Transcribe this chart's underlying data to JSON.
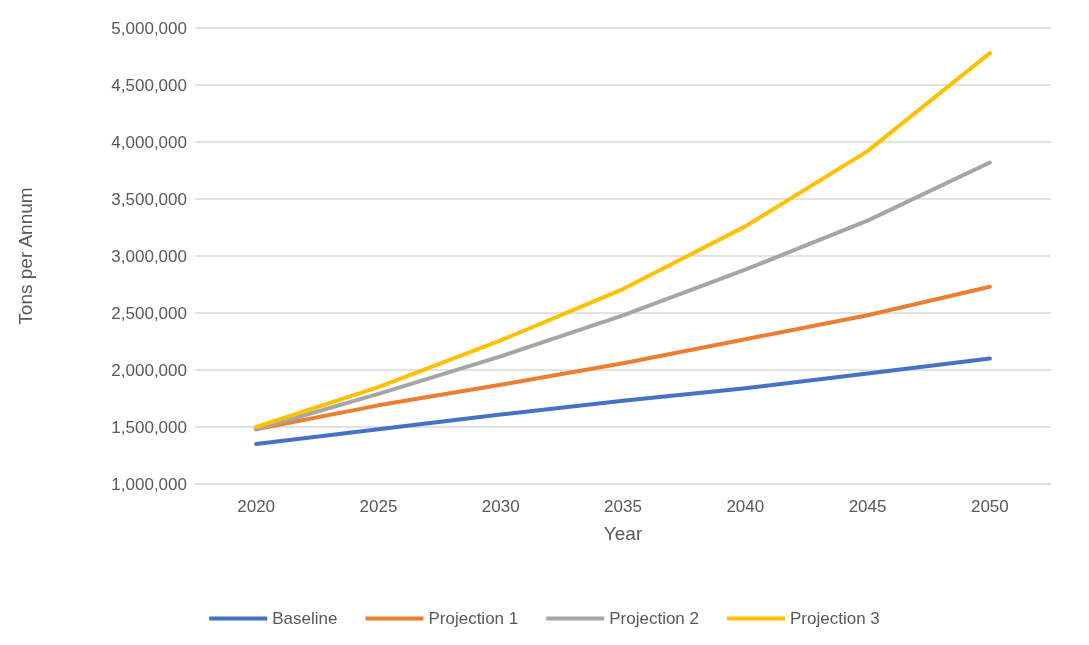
{
  "chart_data": {
    "type": "line",
    "xlabel": "Year",
    "ylabel": "Tons per Annum",
    "categories": [
      "2020",
      "2025",
      "2030",
      "2035",
      "2040",
      "2045",
      "2050"
    ],
    "series": [
      {
        "name": "Baseline",
        "color": "#4472c4",
        "values": [
          1350000,
          1480000,
          1610000,
          1730000,
          1840000,
          1970000,
          2100000
        ]
      },
      {
        "name": "Projection 1",
        "color": "#ed7d31",
        "values": [
          1480000,
          1690000,
          1870000,
          2060000,
          2270000,
          2480000,
          2730000
        ]
      },
      {
        "name": "Projection 2",
        "color": "#a5a5a5",
        "values": [
          1480000,
          1790000,
          2120000,
          2480000,
          2880000,
          3310000,
          3820000
        ]
      },
      {
        "name": "Projection 3",
        "color": "#ffc000",
        "values": [
          1500000,
          1850000,
          2260000,
          2710000,
          3260000,
          3920000,
          4780000
        ]
      }
    ],
    "ylim": [
      1000000,
      5000000
    ],
    "yticks": [
      {
        "value": 1000000,
        "label": "1,000,000"
      },
      {
        "value": 1500000,
        "label": "1,500,000"
      },
      {
        "value": 2000000,
        "label": "2,000,000"
      },
      {
        "value": 2500000,
        "label": "2,500,000"
      },
      {
        "value": 3000000,
        "label": "3,000,000"
      },
      {
        "value": 3500000,
        "label": "3,500,000"
      },
      {
        "value": 4000000,
        "label": "4,000,000"
      },
      {
        "value": 4500000,
        "label": "4,500,000"
      },
      {
        "value": 5000000,
        "label": "5,000,000"
      }
    ],
    "grid": "y",
    "legend": "bottom",
    "marker": "none",
    "line_style": "solid"
  }
}
